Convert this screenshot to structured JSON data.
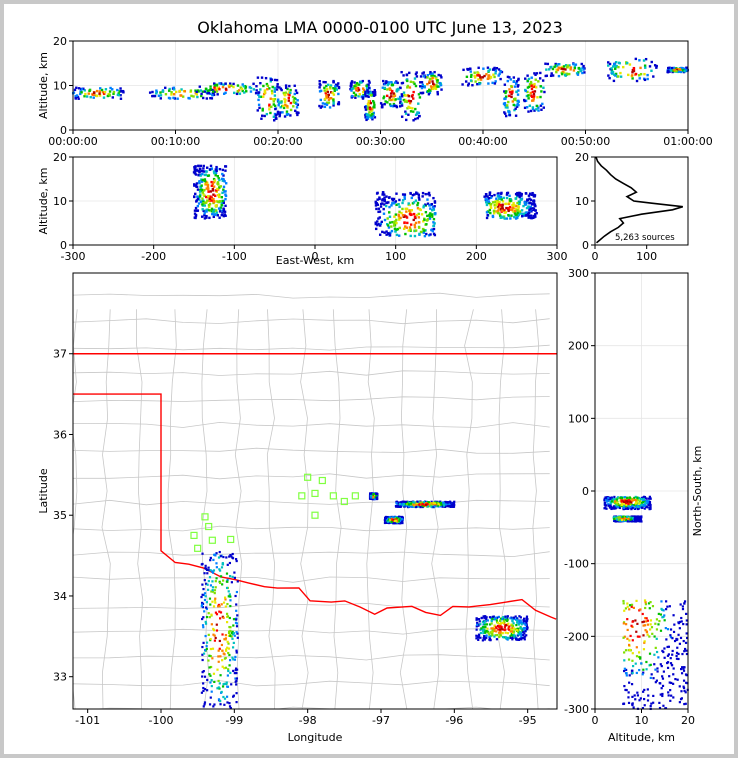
{
  "title": "Oklahoma LMA 0000-0100 UTC June 13, 2023",
  "colors": {
    "density": [
      "#0000cc",
      "#0080ff",
      "#00c0c0",
      "#00c000",
      "#80e000",
      "#e8e800",
      "#ff8000",
      "#ff0000",
      "#b00000"
    ],
    "state_border": "#ff0000",
    "county_lines": "#c8c8c8",
    "station": "#80ff40",
    "altitude_profile": "#000000"
  },
  "chart_data": [
    {
      "name": "altitude-time",
      "type": "scatter",
      "xlim_minutes": [
        0,
        60
      ],
      "xticks": [
        "00:00:00",
        "00:10:00",
        "00:20:00",
        "00:30:00",
        "00:40:00",
        "00:50:00",
        "01:00:00"
      ],
      "ylabel": "Altitude, km",
      "ylim": [
        0,
        20
      ],
      "yticks": [
        0,
        10,
        20
      ],
      "clusters": [
        {
          "t": [
            0,
            5
          ],
          "alt": [
            7,
            9.5
          ]
        },
        {
          "t": [
            7.5,
            14
          ],
          "alt": [
            7,
            9.5
          ]
        },
        {
          "t": [
            12,
            18
          ],
          "alt": [
            8,
            10.5
          ]
        },
        {
          "t": [
            18,
            20
          ],
          "alt": [
            2,
            12
          ]
        },
        {
          "t": [
            20,
            22
          ],
          "alt": [
            3,
            10
          ]
        },
        {
          "t": [
            24,
            26
          ],
          "alt": [
            5,
            11
          ]
        },
        {
          "t": [
            27,
            29
          ],
          "alt": [
            7,
            11
          ]
        },
        {
          "t": [
            28.5,
            29.5
          ],
          "alt": [
            2,
            9
          ]
        },
        {
          "t": [
            30,
            32
          ],
          "alt": [
            5,
            11
          ]
        },
        {
          "t": [
            32,
            34
          ],
          "alt": [
            2,
            13
          ]
        },
        {
          "t": [
            34,
            36
          ],
          "alt": [
            8,
            13
          ]
        },
        {
          "t": [
            38,
            42
          ],
          "alt": [
            10,
            14
          ]
        },
        {
          "t": [
            42,
            43.5
          ],
          "alt": [
            3,
            12
          ]
        },
        {
          "t": [
            44,
            46
          ],
          "alt": [
            4,
            13
          ]
        },
        {
          "t": [
            46,
            50
          ],
          "alt": [
            12,
            15
          ]
        },
        {
          "t": [
            52,
            57
          ],
          "alt": [
            11,
            16
          ]
        },
        {
          "t": [
            58,
            60
          ],
          "alt": [
            13,
            14
          ]
        }
      ]
    },
    {
      "name": "east-west-altitude",
      "type": "scatter",
      "xlabel": "East-West, km",
      "xlim": [
        -300,
        300
      ],
      "xticks": [
        -300,
        -200,
        -100,
        0,
        100,
        200,
        300
      ],
      "ylabel": "Altitude, km",
      "ylim": [
        0,
        20
      ],
      "yticks": [
        0,
        10,
        20
      ],
      "clusters": [
        {
          "x": [
            -150,
            -110
          ],
          "alt": [
            6,
            18
          ],
          "core": [
            -128,
            12
          ]
        },
        {
          "x": [
            75,
            150
          ],
          "alt": [
            2,
            12
          ],
          "core": [
            118,
            6
          ]
        },
        {
          "x": [
            210,
            275
          ],
          "alt": [
            6,
            12
          ],
          "core": [
            235,
            8.5
          ]
        }
      ]
    },
    {
      "name": "altitude-histogram",
      "type": "line",
      "xlim": [
        0,
        180
      ],
      "xticks": [
        0,
        100
      ],
      "ylim": [
        0,
        20
      ],
      "yticks": [
        0,
        10,
        20
      ],
      "annotation": "5,263 sources",
      "profile": [
        {
          "alt": 0.5,
          "count": 3
        },
        {
          "alt": 1,
          "count": 8
        },
        {
          "alt": 2,
          "count": 18
        },
        {
          "alt": 3,
          "count": 30
        },
        {
          "alt": 4,
          "count": 45
        },
        {
          "alt": 5,
          "count": 55
        },
        {
          "alt": 6,
          "count": 48
        },
        {
          "alt": 7,
          "count": 90
        },
        {
          "alt": 8,
          "count": 150
        },
        {
          "alt": 8.7,
          "count": 170
        },
        {
          "alt": 9.5,
          "count": 110
        },
        {
          "alt": 10,
          "count": 75
        },
        {
          "alt": 11,
          "count": 62
        },
        {
          "alt": 12,
          "count": 80
        },
        {
          "alt": 13,
          "count": 70
        },
        {
          "alt": 14,
          "count": 55
        },
        {
          "alt": 15,
          "count": 40
        },
        {
          "alt": 16,
          "count": 30
        },
        {
          "alt": 17,
          "count": 22
        },
        {
          "alt": 18,
          "count": 12
        },
        {
          "alt": 19,
          "count": 5
        },
        {
          "alt": 20,
          "count": 2
        }
      ]
    },
    {
      "name": "plan-view",
      "type": "scatter",
      "xlabel": "Longitude",
      "xlim": [
        -101.2,
        -94.6
      ],
      "xticks": [
        -101,
        -100,
        -99,
        -98,
        -97,
        -96,
        -95
      ],
      "ylabel": "Latitude",
      "ylim": [
        32.6,
        38.0
      ],
      "yticks": [
        33,
        34,
        35,
        36,
        37
      ],
      "stations": [
        {
          "lon": -98.0,
          "lat": 35.47
        },
        {
          "lon": -97.8,
          "lat": 35.43
        },
        {
          "lon": -98.08,
          "lat": 35.24
        },
        {
          "lon": -97.9,
          "lat": 35.27
        },
        {
          "lon": -97.65,
          "lat": 35.24
        },
        {
          "lon": -97.5,
          "lat": 35.17
        },
        {
          "lon": -97.35,
          "lat": 35.24
        },
        {
          "lon": -97.9,
          "lat": 35.0
        },
        {
          "lon": -99.4,
          "lat": 34.98
        },
        {
          "lon": -99.35,
          "lat": 34.86
        },
        {
          "lon": -99.55,
          "lat": 34.75
        },
        {
          "lon": -99.3,
          "lat": 34.69
        },
        {
          "lon": -99.05,
          "lat": 34.7
        },
        {
          "lon": -99.5,
          "lat": 34.59
        }
      ],
      "clusters": [
        {
          "lon": [
            -96.8,
            -96.0
          ],
          "lat": [
            35.1,
            35.17
          ]
        },
        {
          "lon": [
            -96.95,
            -96.7
          ],
          "lat": [
            34.9,
            34.98
          ]
        },
        {
          "lon": [
            -97.15,
            -97.05
          ],
          "lat": [
            35.2,
            35.27
          ]
        },
        {
          "lon": [
            -99.45,
            -98.95
          ],
          "lat": [
            32.6,
            34.55
          ]
        },
        {
          "lon": [
            -95.7,
            -95.0
          ],
          "lat": [
            33.45,
            33.75
          ]
        }
      ]
    },
    {
      "name": "north-south-altitude",
      "type": "scatter",
      "xlabel": "Altitude, km",
      "xlim": [
        0,
        20
      ],
      "xticks": [
        0,
        10,
        20
      ],
      "ylabel": "North-South, km",
      "ylim": [
        -300,
        300
      ],
      "yticks": [
        -300,
        -200,
        -100,
        0,
        100,
        200,
        300
      ],
      "clusters": [
        {
          "alt": [
            2,
            12
          ],
          "ns": [
            -25,
            -8
          ],
          "core": [
            7,
            -15
          ]
        },
        {
          "alt": [
            4,
            10
          ],
          "ns": [
            -42,
            -35
          ],
          "core": [
            6,
            -38
          ]
        },
        {
          "alt": [
            6,
            20
          ],
          "ns": [
            -300,
            -150
          ],
          "core": [
            9,
            -185
          ]
        }
      ]
    }
  ]
}
